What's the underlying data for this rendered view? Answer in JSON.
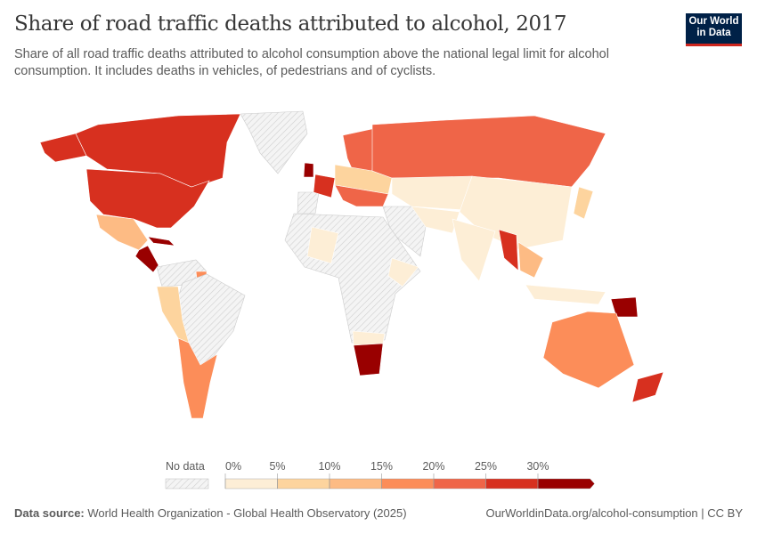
{
  "header": {
    "title": "Share of road traffic deaths attributed to alcohol, 2017",
    "subtitle": "Share of all road traffic deaths attributed to alcohol consumption above the national legal limit for alcohol consumption. It includes deaths in vehicles, of pedestrians and of cyclists.",
    "logo_line1": "Our World",
    "logo_line2": "in Data"
  },
  "legend": {
    "no_data_label": "No data",
    "ticks": [
      "0%",
      "5%",
      "10%",
      "15%",
      "20%",
      "25%",
      "30%"
    ],
    "bins": [
      {
        "range": "0-5%",
        "color": "#fdeed6"
      },
      {
        "range": "5-10%",
        "color": "#fdd49e"
      },
      {
        "range": "10-15%",
        "color": "#fdbb84"
      },
      {
        "range": "15-20%",
        "color": "#fc8d59"
      },
      {
        "range": "20-25%",
        "color": "#ef6548"
      },
      {
        "range": "25-30%",
        "color": "#d7301f"
      },
      {
        "range": ">30%",
        "color": "#990000"
      }
    ],
    "no_data_color": "#e8e8e8"
  },
  "map_data": {
    "Canada": 5,
    "United States": 5,
    "Alaska": 5,
    "Greenland": null,
    "Mexico": 2,
    "Central America": 6,
    "Cuba": 6,
    "Northern South America": null,
    "Guyana": 3,
    "Brazil": null,
    "Peru/Bolivia": 1,
    "Argentina/Chile": 3,
    "France": 5,
    "United Kingdom": 6,
    "Iberia": null,
    "Scandinavia": 4,
    "Central Europe": 1,
    "Balkans": 4,
    "Russia": 4,
    "Central Asia": 0,
    "China": 0,
    "India": 0,
    "Middle East": null,
    "Iran": 0,
    "Africa": null,
    "West Africa": 0,
    "East Africa": 0,
    "Southern Africa": 0,
    "South Africa": 6,
    "Myanmar": 5,
    "Thailand": 2,
    "Indonesia": 0,
    "Papua New Guinea": 6,
    "Australia": 3,
    "New Zealand": 5,
    "Japan": 1
  },
  "footer": {
    "source_label": "Data source:",
    "source": "World Health Organization - Global Health Observatory (2025)",
    "url": "OurWorldinData.org/alcohol-consumption | CC BY"
  }
}
